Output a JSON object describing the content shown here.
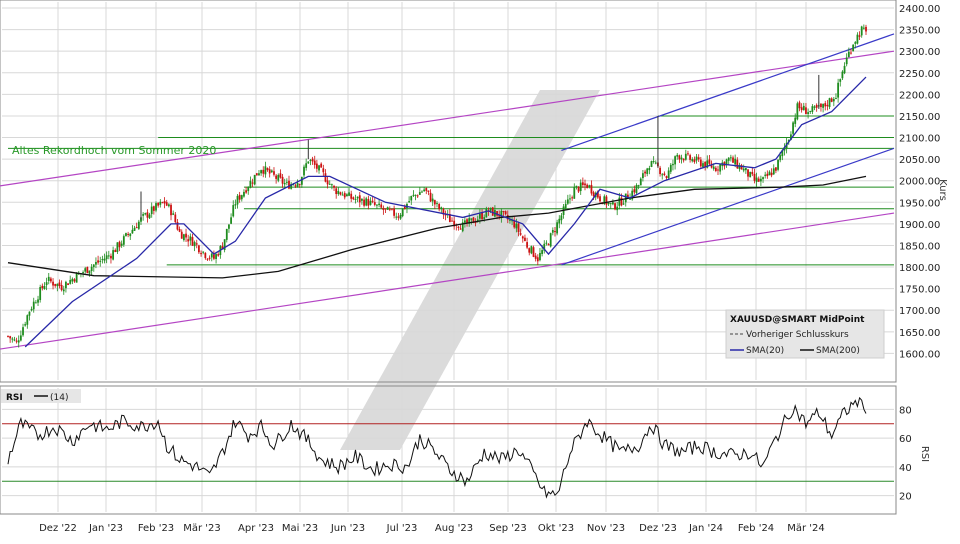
{
  "chart_data": [
    {
      "type": "candlestick",
      "symbol": "XAUUSD@SMART MidPoint",
      "y_axis_label": "Kurs",
      "ylim": [
        1550,
        2400
      ],
      "y_ticks": [
        1600,
        1650,
        1700,
        1750,
        1800,
        1850,
        1900,
        1950,
        2000,
        2050,
        2100,
        2150,
        2200,
        2250,
        2300,
        2350,
        2400
      ],
      "x_ticks": [
        "Dez '22",
        "Jan '23",
        "Feb '23",
        "Mär '23",
        "Apr '23",
        "Mai '23",
        "Jun '23",
        "Jul '23",
        "Aug '23",
        "Sep '23",
        "Okt '23",
        "Nov '23",
        "Dez '23",
        "Jan '24",
        "Feb '24",
        "Mär '24"
      ],
      "grid": true,
      "legend_position": "bottom-right",
      "legend": {
        "title": "XAUUSD@SMART MidPoint",
        "prev_close": "Vorheriger Schlusskurs",
        "sma20": "SMA(20)",
        "sma200": "SMA(200)"
      },
      "annotation": "Altes Rekordhoch vom Sommer 2020",
      "colors": {
        "up": "#1e8c1e",
        "down": "#cc1111",
        "sma20": "#2828a8",
        "sma200": "#111111",
        "channel": "#b445c4",
        "horizontal": "#1e8c1e",
        "trend": "#3a3ac8"
      },
      "horizontal_levels": [
        2075,
        2150,
        2100,
        1985,
        1935,
        1805
      ],
      "close_path": [
        [
          0,
          1640
        ],
        [
          4,
          1625
        ],
        [
          10,
          1700
        ],
        [
          18,
          1770
        ],
        [
          25,
          1755
        ],
        [
          32,
          1780
        ],
        [
          40,
          1805
        ],
        [
          48,
          1830
        ],
        [
          55,
          1870
        ],
        [
          62,
          1910
        ],
        [
          68,
          1935
        ],
        [
          73,
          1950
        ],
        [
          76,
          1930
        ],
        [
          80,
          1880
        ],
        [
          86,
          1860
        ],
        [
          92,
          1830
        ],
        [
          96,
          1820
        ],
        [
          100,
          1850
        ],
        [
          106,
          1950
        ],
        [
          112,
          1990
        ],
        [
          118,
          2030
        ],
        [
          124,
          2010
        ],
        [
          130,
          1990
        ],
        [
          136,
          2000
        ],
        [
          140,
          2050
        ],
        [
          146,
          2020
        ],
        [
          152,
          1980
        ],
        [
          160,
          1960
        ],
        [
          168,
          1950
        ],
        [
          176,
          1930
        ],
        [
          182,
          1920
        ],
        [
          188,
          1960
        ],
        [
          194,
          1980
        ],
        [
          200,
          1940
        ],
        [
          206,
          1910
        ],
        [
          212,
          1895
        ],
        [
          218,
          1910
        ],
        [
          224,
          1930
        ],
        [
          230,
          1920
        ],
        [
          236,
          1900
        ],
        [
          242,
          1850
        ],
        [
          247,
          1820
        ],
        [
          252,
          1860
        ],
        [
          258,
          1920
        ],
        [
          264,
          1980
        ],
        [
          270,
          1990
        ],
        [
          276,
          1960
        ],
        [
          282,
          1940
        ],
        [
          288,
          1960
        ],
        [
          294,
          1990
        ],
        [
          299,
          2040
        ],
        [
          303,
          2030
        ],
        [
          307,
          2010
        ],
        [
          312,
          2060
        ],
        [
          318,
          2050
        ],
        [
          324,
          2040
        ],
        [
          330,
          2030
        ],
        [
          336,
          2050
        ],
        [
          342,
          2030
        ],
        [
          348,
          2000
        ],
        [
          352,
          2000
        ],
        [
          358,
          2030
        ],
        [
          364,
          2100
        ],
        [
          368,
          2170
        ],
        [
          374,
          2160
        ],
        [
          380,
          2170
        ],
        [
          386,
          2200
        ],
        [
          390,
          2270
        ],
        [
          394,
          2320
        ],
        [
          398,
          2350
        ],
        [
          400,
          2340
        ]
      ],
      "sma20_path": [
        [
          8,
          1615
        ],
        [
          30,
          1720
        ],
        [
          60,
          1820
        ],
        [
          76,
          1900
        ],
        [
          82,
          1900
        ],
        [
          96,
          1830
        ],
        [
          106,
          1860
        ],
        [
          120,
          1960
        ],
        [
          140,
          2010
        ],
        [
          150,
          2010
        ],
        [
          176,
          1950
        ],
        [
          212,
          1915
        ],
        [
          224,
          1930
        ],
        [
          240,
          1900
        ],
        [
          252,
          1830
        ],
        [
          264,
          1900
        ],
        [
          276,
          1980
        ],
        [
          290,
          1960
        ],
        [
          306,
          2000
        ],
        [
          330,
          2040
        ],
        [
          348,
          2030
        ],
        [
          358,
          2050
        ],
        [
          370,
          2130
        ],
        [
          384,
          2160
        ],
        [
          400,
          2240
        ]
      ],
      "sma200_path": [
        [
          0,
          1810
        ],
        [
          40,
          1780
        ],
        [
          100,
          1775
        ],
        [
          126,
          1790
        ],
        [
          160,
          1840
        ],
        [
          200,
          1890
        ],
        [
          230,
          1915
        ],
        [
          252,
          1925
        ],
        [
          290,
          1960
        ],
        [
          320,
          1980
        ],
        [
          360,
          1985
        ],
        [
          380,
          1990
        ],
        [
          400,
          2010
        ]
      ],
      "channel_lines": [
        {
          "x0": 0,
          "y0": 1988,
          "x1": 410,
          "y1": 2300
        },
        {
          "x0": 0,
          "y0": 1610,
          "x1": 410,
          "y1": 1925
        }
      ],
      "trend_lines": [
        {
          "x0": 258,
          "y0": 2070,
          "x1": 410,
          "y1": 2340
        },
        {
          "x0": 258,
          "y0": 1805,
          "x1": 410,
          "y1": 2075
        }
      ]
    },
    {
      "type": "line",
      "title": "RSI",
      "series": [
        {
          "name": "(14)",
          "values": []
        }
      ],
      "ylabel": "RSI",
      "ylim": [
        10,
        90
      ],
      "y_ticks": [
        20,
        40,
        60,
        80
      ],
      "levels": [
        70,
        30
      ],
      "rsi_path": [
        [
          0,
          45
        ],
        [
          6,
          70
        ],
        [
          14,
          62
        ],
        [
          22,
          68
        ],
        [
          30,
          58
        ],
        [
          38,
          70
        ],
        [
          46,
          66
        ],
        [
          54,
          72
        ],
        [
          62,
          68
        ],
        [
          70,
          72
        ],
        [
          74,
          55
        ],
        [
          80,
          45
        ],
        [
          88,
          40
        ],
        [
          94,
          33
        ],
        [
          100,
          50
        ],
        [
          106,
          72
        ],
        [
          112,
          62
        ],
        [
          118,
          68
        ],
        [
          124,
          55
        ],
        [
          132,
          70
        ],
        [
          140,
          58
        ],
        [
          146,
          45
        ],
        [
          154,
          40
        ],
        [
          162,
          47
        ],
        [
          170,
          38
        ],
        [
          178,
          42
        ],
        [
          186,
          40
        ],
        [
          192,
          60
        ],
        [
          198,
          52
        ],
        [
          206,
          38
        ],
        [
          214,
          30
        ],
        [
          222,
          50
        ],
        [
          230,
          45
        ],
        [
          238,
          52
        ],
        [
          244,
          38
        ],
        [
          250,
          22
        ],
        [
          256,
          20
        ],
        [
          262,
          50
        ],
        [
          270,
          72
        ],
        [
          278,
          60
        ],
        [
          286,
          50
        ],
        [
          294,
          55
        ],
        [
          300,
          70
        ],
        [
          306,
          55
        ],
        [
          314,
          50
        ],
        [
          322,
          55
        ],
        [
          330,
          50
        ],
        [
          338,
          48
        ],
        [
          346,
          50
        ],
        [
          352,
          40
        ],
        [
          358,
          60
        ],
        [
          366,
          82
        ],
        [
          372,
          70
        ],
        [
          378,
          78
        ],
        [
          384,
          62
        ],
        [
          390,
          78
        ],
        [
          396,
          86
        ],
        [
          400,
          82
        ]
      ]
    }
  ]
}
